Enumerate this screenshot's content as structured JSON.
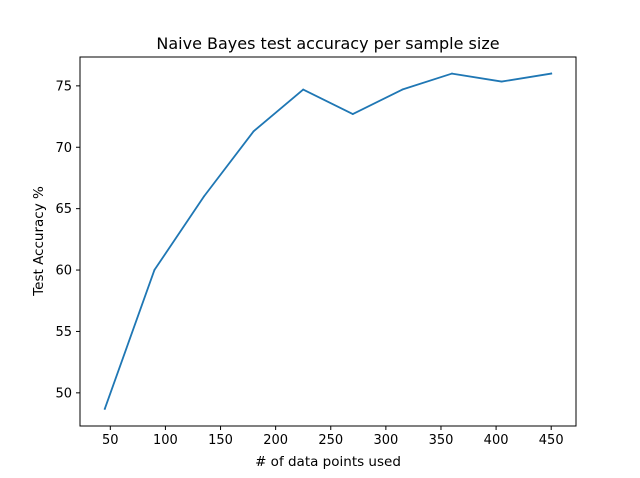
{
  "chart_data": {
    "type": "line",
    "title": "Naive Bayes test accuracy per sample size",
    "xlabel": "# of data points used",
    "ylabel": "Test Accuracy %",
    "x": [
      45,
      90,
      135,
      180,
      225,
      270,
      315,
      360,
      405,
      450
    ],
    "series": [
      {
        "values": [
          48.7,
          60.0,
          66.0,
          71.3,
          74.7,
          72.7,
          74.7,
          76.0,
          75.35,
          76.0
        ],
        "color": "#1f77b4"
      }
    ],
    "xlim": [
      22.5,
      472.5
    ],
    "ylim": [
      47.3,
      77.35
    ],
    "xticks": [
      50,
      100,
      150,
      200,
      250,
      300,
      350,
      400,
      450
    ],
    "yticks": [
      50,
      55,
      60,
      65,
      70,
      75
    ],
    "grid": false
  }
}
